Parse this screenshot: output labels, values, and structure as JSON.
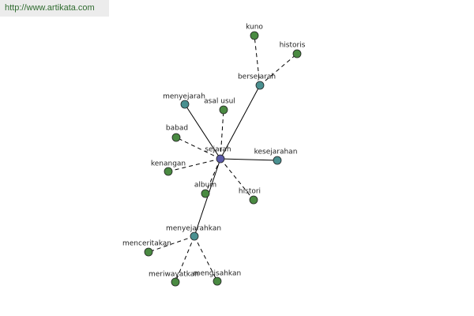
{
  "header": {
    "url": "http://www.artikata.com"
  },
  "nodes": [
    {
      "label": "sejarah"
    },
    {
      "label": "bersejarah"
    },
    {
      "label": "kuno"
    },
    {
      "label": "historis"
    },
    {
      "label": "menyejarah"
    },
    {
      "label": "asal usul"
    },
    {
      "label": "babad"
    },
    {
      "label": "kenangan"
    },
    {
      "label": "kesejarahan"
    },
    {
      "label": "album"
    },
    {
      "label": "histori"
    },
    {
      "label": "menyejarahkan"
    },
    {
      "label": "menceritakan"
    },
    {
      "label": "meriwayatkan"
    },
    {
      "label": "mengisahkan"
    }
  ]
}
